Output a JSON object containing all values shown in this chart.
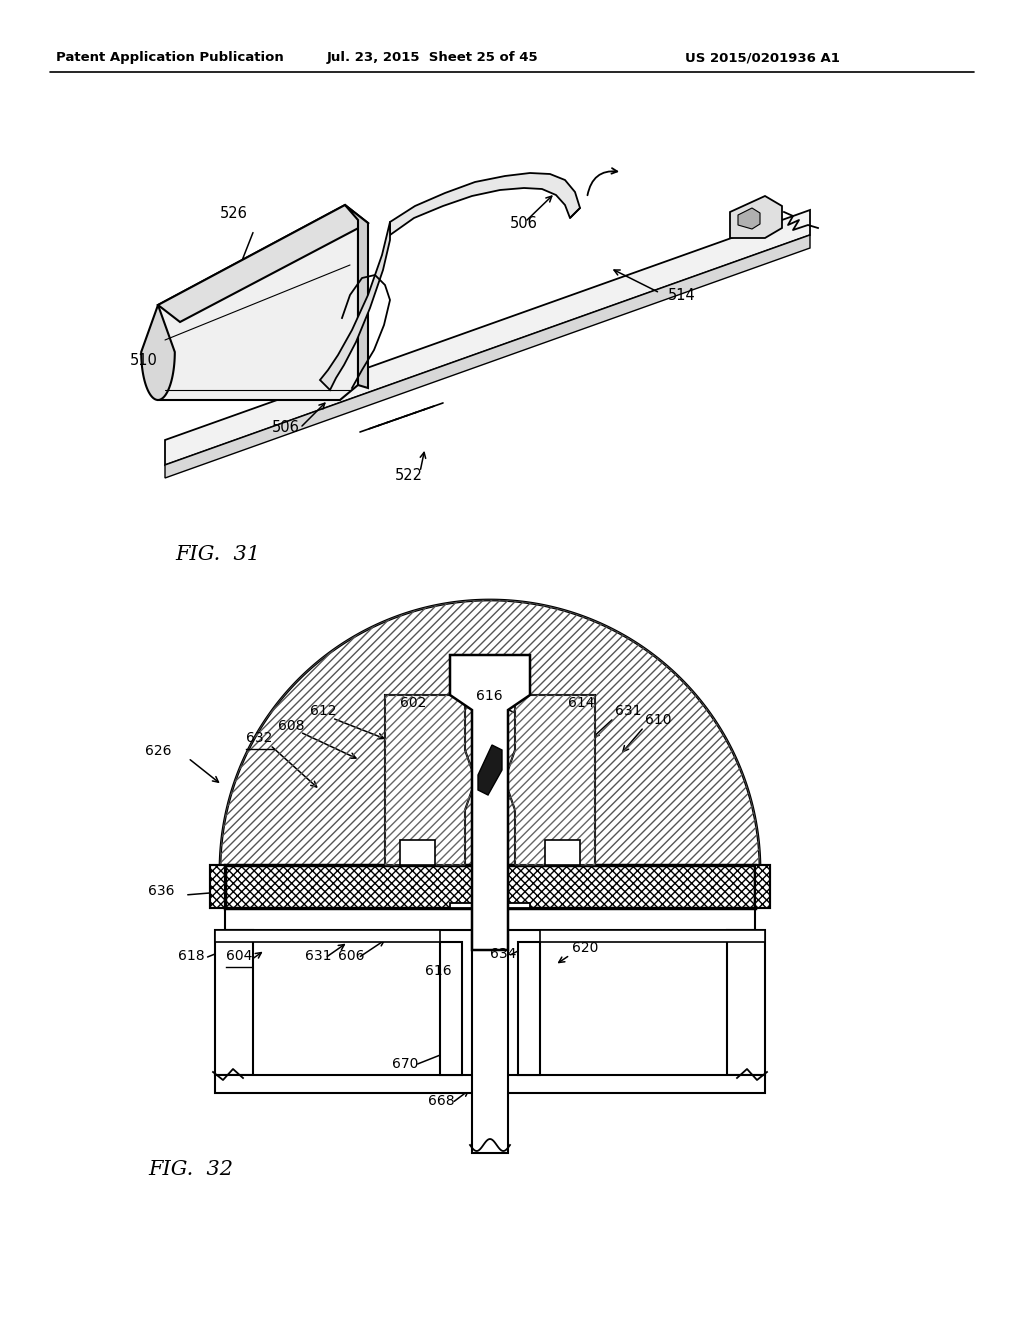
{
  "bg_color": "#ffffff",
  "header_left": "Patent Application Publication",
  "header_center": "Jul. 23, 2015  Sheet 25 of 45",
  "header_right": "US 2015/0201936 A1",
  "fig31_label": "FIG.  31",
  "fig32_label": "FIG.  32"
}
